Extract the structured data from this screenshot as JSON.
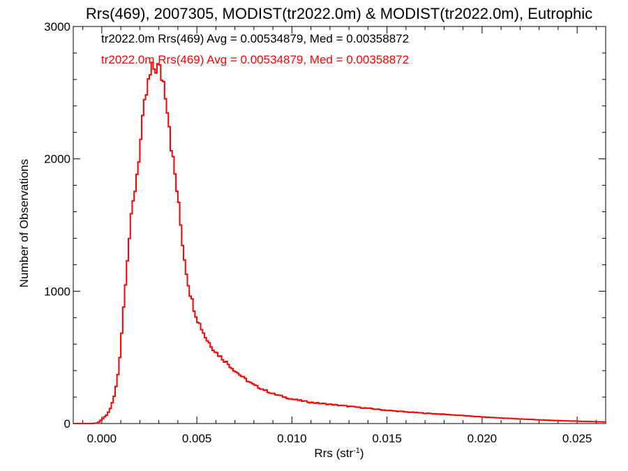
{
  "chart_data": {
    "type": "histogram",
    "title": "Rrs(469), 2007305, MODIST(tr2022.0m) & MODIST(tr2022.0m), Eutrophic",
    "xlabel_main": "Rrs (str",
    "xlabel_sup": "-1",
    "xlabel_close": ")",
    "ylabel": "Number of Observations",
    "xlim": [
      -0.0015,
      0.0265
    ],
    "ylim": [
      0,
      3000
    ],
    "x_ticks": [
      0.0,
      0.005,
      0.01,
      0.015,
      0.02,
      0.025
    ],
    "x_tick_labels": [
      "0.000",
      "0.005",
      "0.010",
      "0.015",
      "0.020",
      "0.025"
    ],
    "y_ticks": [
      0,
      1000,
      2000,
      3000
    ],
    "y_tick_labels": [
      "0",
      "1000",
      "2000",
      "3000"
    ],
    "grid": false,
    "legend_placement": "top-left",
    "series": [
      {
        "name": "tr2022.0m Rrs(469) Avg = 0.00534879, Med = 0.00358872",
        "color": "#000000",
        "profile": [
          [
            -0.0015,
            0
          ],
          [
            -0.0005,
            0
          ],
          [
            -0.0002,
            5
          ],
          [
            0.0,
            30
          ],
          [
            0.0003,
            70
          ],
          [
            0.0005,
            130
          ],
          [
            0.0007,
            230
          ],
          [
            0.0009,
            420
          ],
          [
            0.0011,
            780
          ],
          [
            0.0013,
            1180
          ],
          [
            0.0015,
            1480
          ],
          [
            0.0017,
            1720
          ],
          [
            0.0019,
            1950
          ],
          [
            0.0021,
            2200
          ],
          [
            0.0023,
            2450
          ],
          [
            0.0025,
            2600
          ],
          [
            0.0027,
            2680
          ],
          [
            0.0029,
            2700
          ],
          [
            0.0031,
            2650
          ],
          [
            0.0033,
            2560
          ],
          [
            0.0035,
            2350
          ],
          [
            0.0037,
            2030
          ],
          [
            0.0039,
            1830
          ],
          [
            0.0041,
            1570
          ],
          [
            0.0043,
            1300
          ],
          [
            0.0045,
            1100
          ],
          [
            0.0047,
            950
          ],
          [
            0.005,
            800
          ],
          [
            0.0055,
            640
          ],
          [
            0.006,
            540
          ],
          [
            0.0065,
            470
          ],
          [
            0.007,
            400
          ],
          [
            0.0075,
            340
          ],
          [
            0.008,
            290
          ],
          [
            0.009,
            225
          ],
          [
            0.01,
            185
          ],
          [
            0.011,
            160
          ],
          [
            0.012,
            145
          ],
          [
            0.013,
            130
          ],
          [
            0.014,
            115
          ],
          [
            0.015,
            100
          ],
          [
            0.016,
            88
          ],
          [
            0.017,
            78
          ],
          [
            0.018,
            70
          ],
          [
            0.019,
            60
          ],
          [
            0.02,
            50
          ],
          [
            0.021,
            42
          ],
          [
            0.022,
            35
          ],
          [
            0.023,
            28
          ],
          [
            0.024,
            22
          ],
          [
            0.025,
            18
          ],
          [
            0.0265,
            12
          ]
        ]
      },
      {
        "name": "tr2022.0m Rrs(469) Avg = 0.00534879, Med = 0.00358872",
        "color": "#ff0000",
        "profile": [
          [
            -0.0015,
            0
          ],
          [
            -0.0005,
            0
          ],
          [
            -0.0002,
            5
          ],
          [
            0.0,
            30
          ],
          [
            0.0003,
            70
          ],
          [
            0.0005,
            130
          ],
          [
            0.0007,
            230
          ],
          [
            0.0009,
            420
          ],
          [
            0.0011,
            780
          ],
          [
            0.0013,
            1180
          ],
          [
            0.0015,
            1480
          ],
          [
            0.0017,
            1720
          ],
          [
            0.0019,
            1950
          ],
          [
            0.0021,
            2200
          ],
          [
            0.0023,
            2450
          ],
          [
            0.0025,
            2600
          ],
          [
            0.0027,
            2680
          ],
          [
            0.0029,
            2700
          ],
          [
            0.0031,
            2650
          ],
          [
            0.0033,
            2560
          ],
          [
            0.0035,
            2350
          ],
          [
            0.0037,
            2030
          ],
          [
            0.0039,
            1830
          ],
          [
            0.0041,
            1570
          ],
          [
            0.0043,
            1300
          ],
          [
            0.0045,
            1100
          ],
          [
            0.0047,
            950
          ],
          [
            0.005,
            800
          ],
          [
            0.0055,
            640
          ],
          [
            0.006,
            540
          ],
          [
            0.0065,
            470
          ],
          [
            0.007,
            400
          ],
          [
            0.0075,
            340
          ],
          [
            0.008,
            290
          ],
          [
            0.009,
            225
          ],
          [
            0.01,
            185
          ],
          [
            0.011,
            160
          ],
          [
            0.012,
            145
          ],
          [
            0.013,
            130
          ],
          [
            0.014,
            115
          ],
          [
            0.015,
            100
          ],
          [
            0.016,
            88
          ],
          [
            0.017,
            78
          ],
          [
            0.018,
            70
          ],
          [
            0.019,
            60
          ],
          [
            0.02,
            50
          ],
          [
            0.021,
            42
          ],
          [
            0.022,
            35
          ],
          [
            0.023,
            28
          ],
          [
            0.024,
            22
          ],
          [
            0.025,
            18
          ],
          [
            0.0265,
            12
          ]
        ]
      }
    ]
  }
}
